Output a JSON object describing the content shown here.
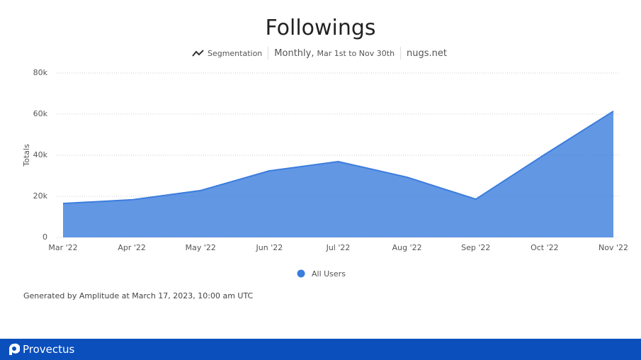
{
  "chart_data": {
    "type": "area",
    "title": "Followings",
    "segmentation_label": "Segmentation",
    "interval": "Monthly,",
    "date_range": "Mar 1st to Nov 30th",
    "project": "nugs.net",
    "y_label": "Totals",
    "categories": [
      "Mar '22",
      "Apr '22",
      "May '22",
      "Jun '22",
      "Jul '22",
      "Aug '22",
      "Sep '22",
      "Oct '22",
      "Nov '22"
    ],
    "series": [
      {
        "name": "All Users",
        "color": "#3b7ddd",
        "values": [
          16500,
          18300,
          22800,
          32400,
          36900,
          29300,
          18600,
          40300,
          61400
        ]
      }
    ],
    "ylim": [
      0,
      80000
    ],
    "yticks": [
      0,
      {
        "value": 20000,
        "label": "20k"
      },
      {
        "value": 40000,
        "label": "40k"
      },
      {
        "value": 60000,
        "label": "60k"
      },
      {
        "value": 80000,
        "label": "80k"
      }
    ],
    "grid": true
  },
  "footer": "Generated by Amplitude at March 17, 2023, 10:00 am UTC",
  "brand": "Provectus"
}
